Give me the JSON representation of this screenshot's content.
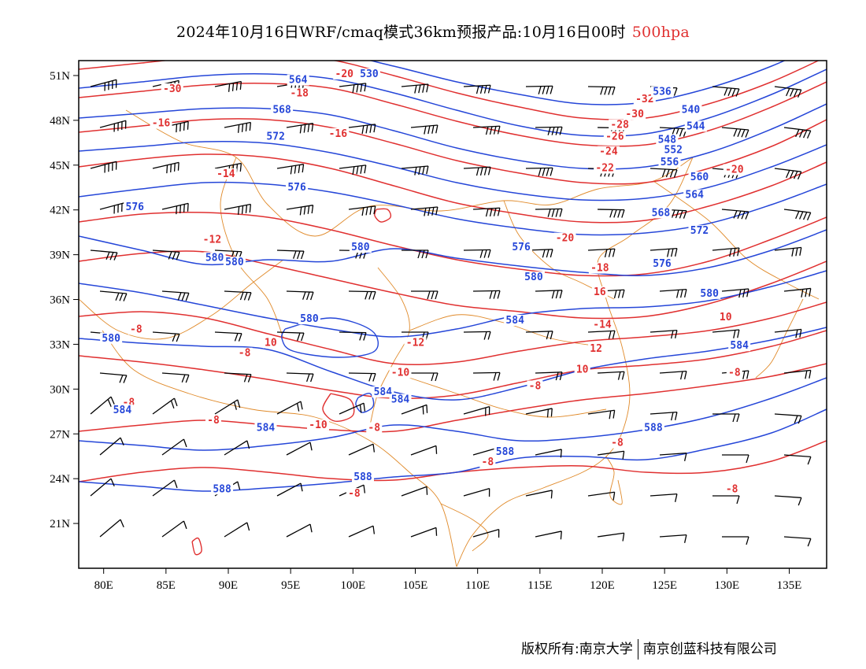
{
  "title": {
    "main": "2024年10月16日WRF/cmaq模式36km预报产品:10月16日00时",
    "level": "500hpa",
    "level_color": "#e03030"
  },
  "footer": {
    "left": "版权所有:南京大学",
    "right": "南京创蓝科技有限公司"
  },
  "colors": {
    "height_contour": "#2546d8",
    "temperature_contour": "#e03030",
    "boundary": "#e08a2a",
    "wind_barb": "#000000"
  },
  "map": {
    "lon_range": [
      78,
      138
    ],
    "lat_range": [
      18,
      52
    ],
    "x_ticks": [
      {
        "lon": 80,
        "label": "80E"
      },
      {
        "lon": 85,
        "label": "85E"
      },
      {
        "lon": 90,
        "label": "90E"
      },
      {
        "lon": 95,
        "label": "95E"
      },
      {
        "lon": 100,
        "label": "100E"
      },
      {
        "lon": 105,
        "label": "105E"
      },
      {
        "lon": 110,
        "label": "110E"
      },
      {
        "lon": 115,
        "label": "115E"
      },
      {
        "lon": 120,
        "label": "120E"
      },
      {
        "lon": 125,
        "label": "125E"
      },
      {
        "lon": 130,
        "label": "130E"
      },
      {
        "lon": 135,
        "label": "135E"
      }
    ],
    "y_ticks": [
      {
        "lat": 21,
        "label": "21N"
      },
      {
        "lat": 24,
        "label": "24N"
      },
      {
        "lat": 27,
        "label": "27N"
      },
      {
        "lat": 30,
        "label": "30N"
      },
      {
        "lat": 33,
        "label": "33N"
      },
      {
        "lat": 36,
        "label": "36N"
      },
      {
        "lat": 39,
        "label": "39N"
      },
      {
        "lat": 42,
        "label": "42N"
      },
      {
        "lat": 45,
        "label": "45N"
      },
      {
        "lat": 48,
        "label": "48N"
      },
      {
        "lat": 51,
        "label": "51N"
      }
    ],
    "height_labels": [
      {
        "text": "564",
        "lon": 95.6,
        "lat": 50.6
      },
      {
        "text": "568",
        "lon": 94.3,
        "lat": 48.6
      },
      {
        "text": "572",
        "lon": 93.8,
        "lat": 46.8
      },
      {
        "text": "576",
        "lon": 95.5,
        "lat": 43.4
      },
      {
        "text": "576",
        "lon": 82.5,
        "lat": 42.1
      },
      {
        "text": "580",
        "lon": 88.9,
        "lat": 38.7
      },
      {
        "text": "580",
        "lon": 90.5,
        "lat": 38.4
      },
      {
        "text": "580",
        "lon": 100.6,
        "lat": 39.4
      },
      {
        "text": "580",
        "lon": 96.5,
        "lat": 34.6
      },
      {
        "text": "580",
        "lon": 80.6,
        "lat": 33.3
      },
      {
        "text": "576",
        "lon": 113.5,
        "lat": 39.4
      },
      {
        "text": "580",
        "lon": 114.5,
        "lat": 37.4
      },
      {
        "text": "584",
        "lon": 113.0,
        "lat": 34.5
      },
      {
        "text": "584",
        "lon": 102.4,
        "lat": 29.7
      },
      {
        "text": "584",
        "lon": 103.8,
        "lat": 29.2
      },
      {
        "text": "584",
        "lon": 81.5,
        "lat": 28.5
      },
      {
        "text": "584",
        "lon": 93.0,
        "lat": 27.3
      },
      {
        "text": "588",
        "lon": 112.2,
        "lat": 25.7
      },
      {
        "text": "588",
        "lon": 100.8,
        "lat": 24.0
      },
      {
        "text": "588",
        "lon": 89.5,
        "lat": 23.2
      },
      {
        "text": "588",
        "lon": 124.1,
        "lat": 27.3
      },
      {
        "text": "584",
        "lon": 131.0,
        "lat": 32.8
      },
      {
        "text": "580",
        "lon": 128.6,
        "lat": 36.3
      },
      {
        "text": "576",
        "lon": 124.8,
        "lat": 38.3
      },
      {
        "text": "572",
        "lon": 127.8,
        "lat": 40.5
      },
      {
        "text": "568",
        "lon": 124.7,
        "lat": 41.7
      },
      {
        "text": "564",
        "lon": 127.4,
        "lat": 42.9
      },
      {
        "text": "560",
        "lon": 127.8,
        "lat": 44.1
      },
      {
        "text": "556",
        "lon": 125.4,
        "lat": 45.1
      },
      {
        "text": "552",
        "lon": 125.7,
        "lat": 45.9
      },
      {
        "text": "548",
        "lon": 125.2,
        "lat": 46.6
      },
      {
        "text": "544",
        "lon": 127.5,
        "lat": 47.5
      },
      {
        "text": "540",
        "lon": 127.1,
        "lat": 48.6
      },
      {
        "text": "536",
        "lon": 124.8,
        "lat": 49.8
      },
      {
        "text": "530",
        "lon": 101.3,
        "lat": 51.0
      }
    ],
    "temp_labels": [
      {
        "text": "-30",
        "lon": 85.5,
        "lat": 50.0
      },
      {
        "text": "-20",
        "lon": 99.3,
        "lat": 51.0
      },
      {
        "text": "-18",
        "lon": 95.7,
        "lat": 49.7
      },
      {
        "text": "-16",
        "lon": 84.6,
        "lat": 47.7
      },
      {
        "text": "-16",
        "lon": 98.8,
        "lat": 47.0
      },
      {
        "text": "-14",
        "lon": 89.8,
        "lat": 44.3
      },
      {
        "text": "-12",
        "lon": 88.7,
        "lat": 39.9
      },
      {
        "text": "-8",
        "lon": 82.6,
        "lat": 33.9
      },
      {
        "text": "-8",
        "lon": 91.3,
        "lat": 32.3
      },
      {
        "text": "10",
        "lon": 93.4,
        "lat": 33.0
      },
      {
        "text": "-12",
        "lon": 105.0,
        "lat": 33.0
      },
      {
        "text": "-10",
        "lon": 103.8,
        "lat": 31.0
      },
      {
        "text": "-8",
        "lon": 82.0,
        "lat": 29.0
      },
      {
        "text": "-8",
        "lon": 88.8,
        "lat": 27.8
      },
      {
        "text": "-10",
        "lon": 97.2,
        "lat": 27.5
      },
      {
        "text": "-8",
        "lon": 101.7,
        "lat": 27.3
      },
      {
        "text": "-8",
        "lon": 110.8,
        "lat": 25.0
      },
      {
        "text": "-8",
        "lon": 100.1,
        "lat": 22.9
      },
      {
        "text": "-8",
        "lon": 114.6,
        "lat": 30.1
      },
      {
        "text": "10",
        "lon": 118.4,
        "lat": 31.2
      },
      {
        "text": "12",
        "lon": 119.5,
        "lat": 32.6
      },
      {
        "text": "-14",
        "lon": 120.0,
        "lat": 34.2
      },
      {
        "text": "16",
        "lon": 119.8,
        "lat": 36.4
      },
      {
        "text": "-18",
        "lon": 119.8,
        "lat": 38.0
      },
      {
        "text": "-20",
        "lon": 117.0,
        "lat": 40.0
      },
      {
        "text": "-22",
        "lon": 120.2,
        "lat": 44.7
      },
      {
        "text": "-24",
        "lon": 120.5,
        "lat": 45.8
      },
      {
        "text": "-26",
        "lon": 121.0,
        "lat": 46.8
      },
      {
        "text": "-28",
        "lon": 121.4,
        "lat": 47.6
      },
      {
        "text": "-30",
        "lon": 122.6,
        "lat": 48.3
      },
      {
        "text": "-32",
        "lon": 123.4,
        "lat": 49.3
      },
      {
        "text": "-20",
        "lon": 130.6,
        "lat": 44.6
      },
      {
        "text": "10",
        "lon": 129.9,
        "lat": 34.7
      },
      {
        "text": "-8",
        "lon": 130.6,
        "lat": 31.0
      },
      {
        "text": "-8",
        "lon": 121.2,
        "lat": 26.3
      },
      {
        "text": "-8",
        "lon": 130.4,
        "lat": 23.2
      }
    ]
  }
}
